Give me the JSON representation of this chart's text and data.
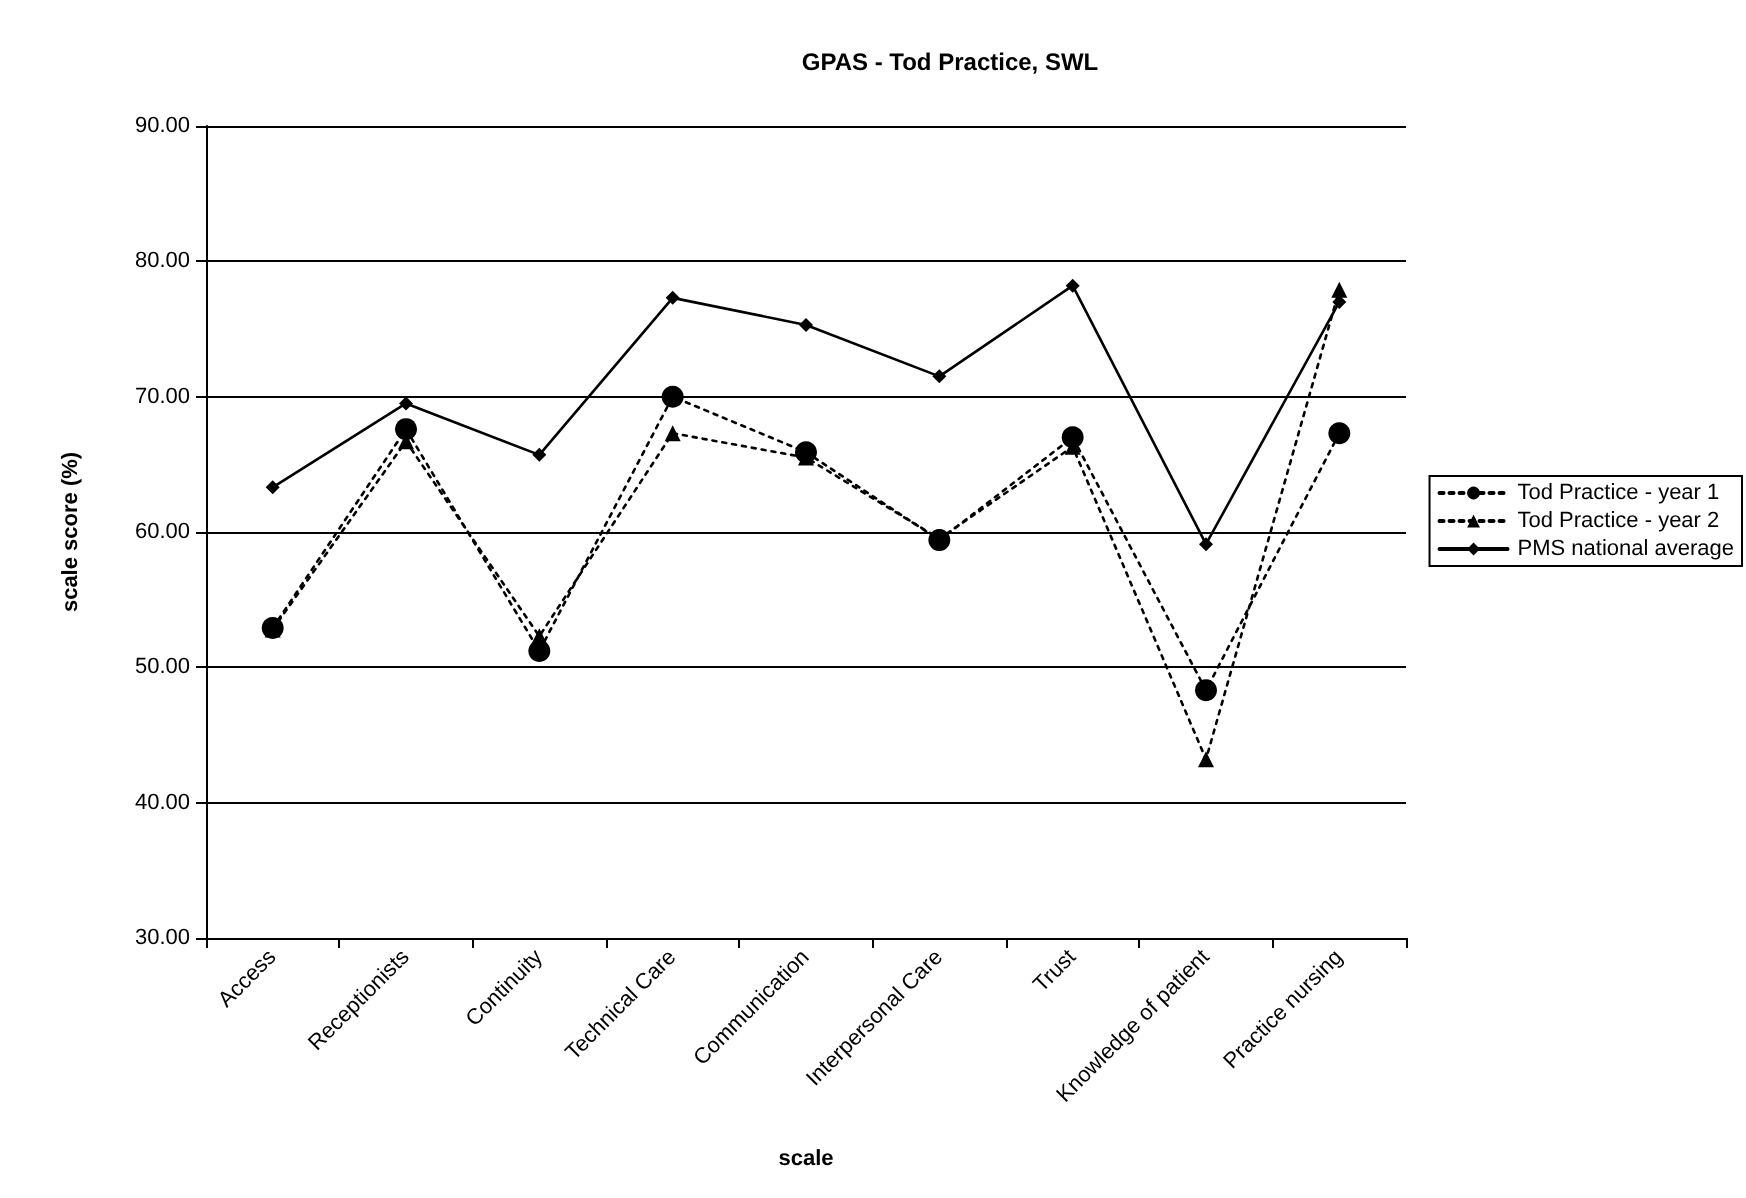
{
  "chart_data": {
    "type": "line",
    "title": "GPAS - Tod Practice, SWL",
    "xlabel": "scale",
    "ylabel": "scale score (%)",
    "categories": [
      "Access",
      "Receptionists",
      "Continuity",
      "Technical Care",
      "Communication",
      "Interpersonal Care",
      "Trust",
      "Knowledge of patient",
      "Practice nursing"
    ],
    "series": [
      {
        "name": "Tod Practice - year 1",
        "color": "#000000",
        "marker": "circle",
        "line_style": "dotted",
        "values": [
          52.9,
          67.6,
          51.2,
          70.0,
          65.9,
          59.4,
          67.0,
          48.3,
          67.3
        ]
      },
      {
        "name": "Tod Practice - year 2",
        "color": "#000000",
        "marker": "triangle",
        "line_style": "dotted",
        "values": [
          52.8,
          66.7,
          52.3,
          67.3,
          65.5,
          59.5,
          66.3,
          43.2,
          77.9
        ]
      },
      {
        "name": "PMS national average",
        "color": "#000000",
        "marker": "diamond",
        "line_style": "solid",
        "values": [
          63.3,
          69.5,
          65.7,
          77.3,
          75.3,
          71.5,
          78.2,
          59.1,
          77.0
        ]
      }
    ],
    "ylim": [
      30,
      90
    ],
    "yticks": [
      {
        "value": 30,
        "label": "30.00"
      },
      {
        "value": 40,
        "label": "40.00"
      },
      {
        "value": 50,
        "label": "50.00"
      },
      {
        "value": 60,
        "label": "60.00"
      },
      {
        "value": 70,
        "label": "70.00"
      },
      {
        "value": 80,
        "label": "80.00"
      },
      {
        "value": 90,
        "label": "90.00"
      }
    ],
    "grid": "y",
    "legend": "right"
  }
}
